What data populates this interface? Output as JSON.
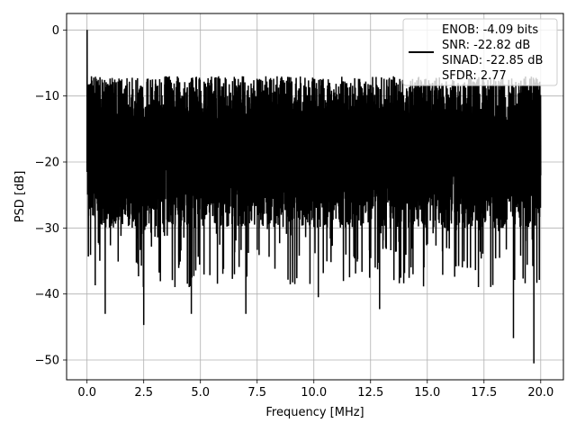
{
  "chart_data": {
    "type": "line",
    "title": "",
    "xlabel": "Frequency [MHz]",
    "ylabel": "PSD [dB]",
    "xlim": [
      -0.9,
      21.0
    ],
    "ylim": [
      -53,
      2.5
    ],
    "xticks": [
      0.0,
      2.5,
      5.0,
      7.5,
      10.0,
      12.5,
      15.0,
      17.5,
      20.0
    ],
    "xtick_labels": [
      "0.0",
      "2.5",
      "5.0",
      "7.5",
      "10.0",
      "12.5",
      "15.0",
      "17.5",
      "20.0"
    ],
    "yticks": [
      0,
      -10,
      -20,
      -30,
      -40,
      -50
    ],
    "ytick_labels": [
      "0",
      "−10",
      "−20",
      "−30",
      "−40",
      "−50"
    ],
    "grid": true,
    "legend_position": "upper-right",
    "series": [
      {
        "color": "#000000",
        "x_start": 0.0,
        "x_end": 20.0,
        "y_center": -18,
        "y_typical_range": [
          -27,
          -11
        ],
        "y_max": 0,
        "y_min": -50.5,
        "legend_lines": [
          "ENOB: -4.09 bits",
          "SNR: -22.82 dB",
          "SINAD: -22.85 dB",
          "SFDR: 2.77"
        ],
        "notable_points": [
          {
            "x": 0.0,
            "y": 0
          },
          {
            "x": 0.05,
            "y": -21.5
          },
          {
            "x": 0.8,
            "y": -43
          },
          {
            "x": 2.5,
            "y": -44.7
          },
          {
            "x": 4.6,
            "y": -43
          },
          {
            "x": 7.0,
            "y": -43
          },
          {
            "x": 10.2,
            "y": -40.5
          },
          {
            "x": 12.9,
            "y": -42.3
          },
          {
            "x": 18.8,
            "y": -46.7
          },
          {
            "x": 19.7,
            "y": -50.5
          },
          {
            "x": 20.0,
            "y": -22
          }
        ]
      }
    ]
  }
}
